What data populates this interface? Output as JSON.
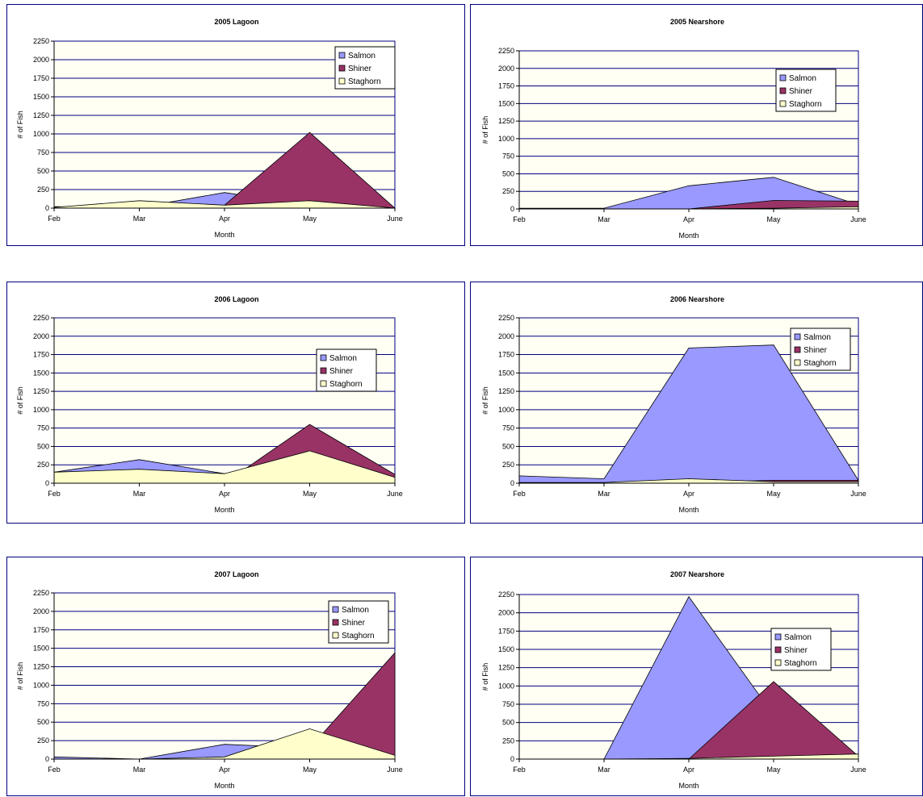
{
  "colors": {
    "salmon": "#9999ff",
    "shiner": "#993366",
    "staghorn": "#ffffcc",
    "frame": "#000080",
    "plot_bg": "#fffff4"
  },
  "chart_data": [
    {
      "type": "area",
      "title": "2005 Lagoon",
      "xlabel": "Month",
      "ylabel": "# of Fish",
      "categories": [
        "Feb",
        "Mar",
        "Apr",
        "May",
        "June"
      ],
      "ylim": [
        0,
        2250
      ],
      "yticks": [
        0,
        250,
        500,
        750,
        1000,
        1250,
        1500,
        1750,
        2000,
        2250
      ],
      "grid": true,
      "legend": "top-right",
      "series": [
        {
          "name": "Salmon",
          "values": [
            20,
            10,
            210,
            40,
            0
          ]
        },
        {
          "name": "Shiner",
          "values": [
            0,
            0,
            40,
            1020,
            0
          ]
        },
        {
          "name": "Staghorn",
          "values": [
            10,
            100,
            40,
            100,
            0
          ]
        }
      ]
    },
    {
      "type": "area",
      "title": "2005 Nearshore",
      "xlabel": "Month",
      "ylabel": "# of Fish",
      "categories": [
        "Feb",
        "Mar",
        "Apr",
        "May",
        "June"
      ],
      "ylim": [
        0,
        2250
      ],
      "yticks": [
        0,
        250,
        500,
        750,
        1000,
        1250,
        1500,
        1750,
        2000,
        2250
      ],
      "grid": true,
      "legend": "top-right",
      "series": [
        {
          "name": "Salmon",
          "values": [
            10,
            10,
            330,
            450,
            60
          ]
        },
        {
          "name": "Shiner",
          "values": [
            0,
            0,
            0,
            120,
            110
          ]
        },
        {
          "name": "Staghorn",
          "values": [
            0,
            0,
            0,
            10,
            30
          ]
        }
      ]
    },
    {
      "type": "area",
      "title": "2006 Lagoon",
      "xlabel": "Month",
      "ylabel": "# of Fish",
      "categories": [
        "Feb",
        "Mar",
        "Apr",
        "May",
        "June"
      ],
      "ylim": [
        0,
        2250
      ],
      "yticks": [
        0,
        250,
        500,
        750,
        1000,
        1250,
        1500,
        1750,
        2000,
        2250
      ],
      "grid": true,
      "legend": "top-right",
      "series": [
        {
          "name": "Salmon",
          "values": [
            150,
            320,
            130,
            200,
            100
          ]
        },
        {
          "name": "Shiner",
          "values": [
            0,
            0,
            0,
            800,
            120
          ]
        },
        {
          "name": "Staghorn",
          "values": [
            150,
            190,
            130,
            440,
            80
          ]
        }
      ]
    },
    {
      "type": "area",
      "title": "2006 Nearshore",
      "xlabel": "Month",
      "ylabel": "# of Fish",
      "categories": [
        "Feb",
        "Mar",
        "Apr",
        "May",
        "June"
      ],
      "ylim": [
        0,
        2250
      ],
      "yticks": [
        0,
        250,
        500,
        750,
        1000,
        1250,
        1500,
        1750,
        2000,
        2250
      ],
      "grid": true,
      "legend": "top-right",
      "series": [
        {
          "name": "Salmon",
          "values": [
            100,
            60,
            1840,
            1880,
            40
          ]
        },
        {
          "name": "Shiner",
          "values": [
            0,
            0,
            10,
            40,
            40
          ]
        },
        {
          "name": "Staghorn",
          "values": [
            10,
            10,
            60,
            20,
            20
          ]
        }
      ]
    },
    {
      "type": "area",
      "title": "2007 Lagoon",
      "xlabel": "Month",
      "ylabel": "# of Fish",
      "categories": [
        "Feb",
        "Mar",
        "Apr",
        "May",
        "June"
      ],
      "ylim": [
        0,
        2250
      ],
      "yticks": [
        0,
        250,
        500,
        750,
        1000,
        1250,
        1500,
        1750,
        2000,
        2250
      ],
      "grid": true,
      "legend": "top-right",
      "series": [
        {
          "name": "Salmon",
          "values": [
            30,
            0,
            200,
            150,
            0
          ]
        },
        {
          "name": "Shiner",
          "values": [
            0,
            0,
            0,
            150,
            1440
          ]
        },
        {
          "name": "Staghorn",
          "values": [
            0,
            0,
            30,
            410,
            50
          ]
        }
      ]
    },
    {
      "type": "area",
      "title": "2007 Nearshore",
      "xlabel": "Month",
      "ylabel": "# of Fish",
      "categories": [
        "Feb",
        "Mar",
        "Apr",
        "May",
        "June"
      ],
      "ylim": [
        0,
        2250
      ],
      "yticks": [
        0,
        250,
        500,
        750,
        1000,
        1250,
        1500,
        1750,
        2000,
        2250
      ],
      "grid": true,
      "legend": "top-right",
      "series": [
        {
          "name": "Salmon",
          "values": [
            0,
            0,
            2220,
            600,
            0
          ]
        },
        {
          "name": "Shiner",
          "values": [
            0,
            0,
            0,
            1060,
            40
          ]
        },
        {
          "name": "Staghorn",
          "values": [
            0,
            0,
            10,
            40,
            70
          ]
        }
      ]
    }
  ]
}
